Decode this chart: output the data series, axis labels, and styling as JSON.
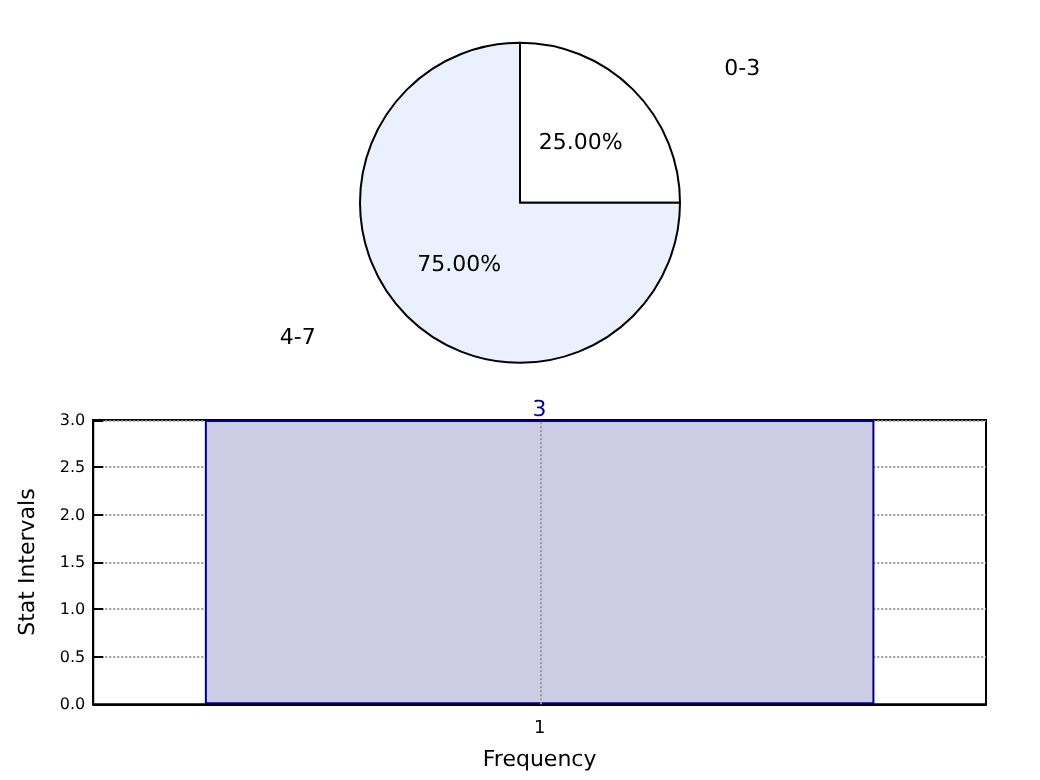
{
  "chart_data": [
    {
      "type": "pie",
      "categories": [
        "0-3",
        "4-7"
      ],
      "values": [
        25,
        75
      ],
      "colors": [
        "#ffffff",
        "#eaf0fd"
      ],
      "value_labels": [
        "25.00%",
        "75.00%"
      ]
    },
    {
      "type": "bar",
      "categories": [
        "1"
      ],
      "values": [
        3
      ],
      "color": "#ccccE4",
      "data_labels": true,
      "ylim": [
        0,
        3
      ],
      "yticks": [
        {
          "value": 0,
          "label": "0.0"
        },
        {
          "value": 0.5,
          "label": "0.5"
        },
        {
          "value": 1,
          "label": "1.0"
        },
        {
          "value": 1.5,
          "label": "1.5"
        },
        {
          "value": 2,
          "label": "2.0"
        },
        {
          "value": 2.5,
          "label": "2.5"
        },
        {
          "value": 3,
          "label": "3.0"
        }
      ],
      "xlabel": "Frequency",
      "ylabel": "Stat Intervals",
      "grid": true
    }
  ]
}
